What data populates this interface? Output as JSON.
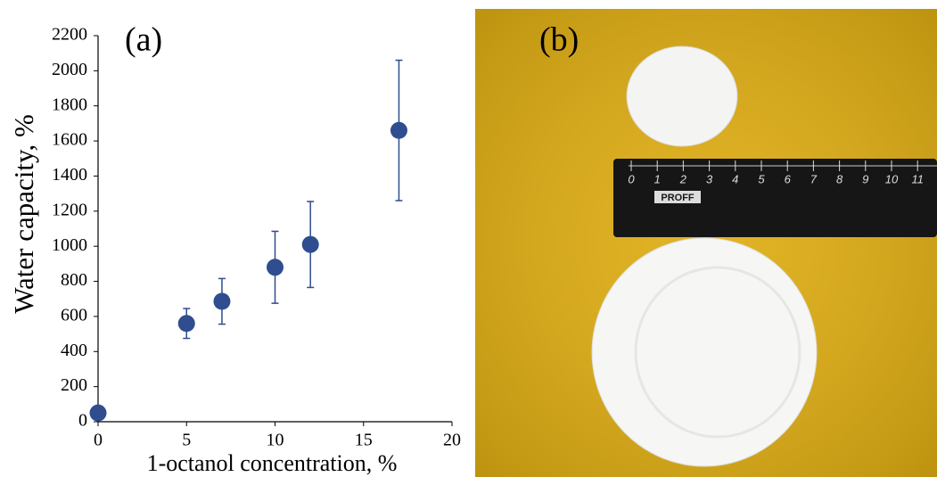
{
  "chart_data": {
    "type": "scatter",
    "label": "(a)",
    "x_label": "1-octanol concentration, %",
    "y_label": "Water capacity, %",
    "series": [
      {
        "color": "#2f4d8f",
        "x": [
          0,
          5,
          7,
          10,
          12,
          17
        ],
        "values": [
          50,
          560,
          686,
          880,
          1010,
          1660
        ],
        "errors": [
          null,
          85,
          130,
          205,
          245,
          400
        ]
      }
    ],
    "xlim": [
      0,
      20
    ],
    "xticks": [
      0,
      5,
      10,
      15,
      20
    ],
    "ylim": [
      0,
      2200
    ],
    "yticks": [
      0,
      200,
      400,
      600,
      800,
      1000,
      1200,
      1400,
      1600,
      1800,
      2000,
      2200
    ]
  },
  "photo": {
    "label": "(b)",
    "ruler_numbers": [
      "0",
      "1",
      "2",
      "3",
      "4",
      "5",
      "6",
      "7",
      "8",
      "9",
      "10",
      "11"
    ],
    "brand": "PROFF"
  }
}
